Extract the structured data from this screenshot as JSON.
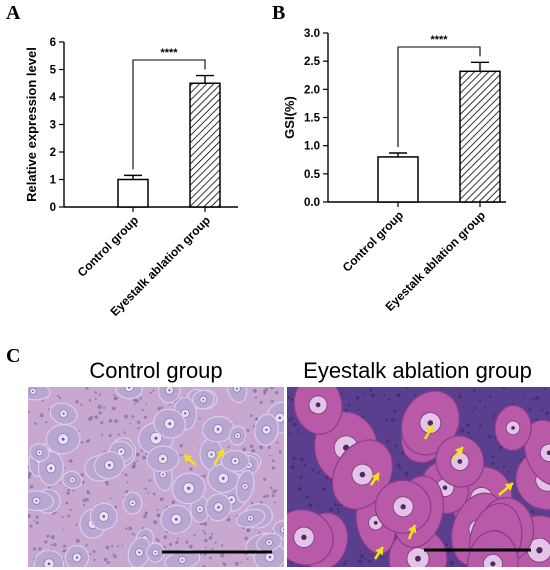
{
  "panels": {
    "a_letter": "A",
    "b_letter": "B",
    "c_letter": "C"
  },
  "chart_data": [
    {
      "type": "bar",
      "panel": "A",
      "categories": [
        "Control group",
        "Eyestalk ablation group"
      ],
      "values": [
        1.0,
        4.5
      ],
      "errors": [
        0.15,
        0.28
      ],
      "ylabel": "Relative expression level",
      "xlabel": "",
      "ylim": [
        0,
        6
      ],
      "yticks": [
        "0",
        "1",
        "2",
        "3",
        "4",
        "5",
        "6"
      ],
      "significance": "****",
      "bar_fills": [
        "white",
        "hatched"
      ],
      "grid": false
    },
    {
      "type": "bar",
      "panel": "B",
      "categories": [
        "Control group",
        "Eyestalk ablation group"
      ],
      "values": [
        0.8,
        2.32
      ],
      "errors": [
        0.07,
        0.16
      ],
      "ylabel": "GSI(%)",
      "xlabel": "",
      "ylim": [
        0,
        3.0
      ],
      "yticks": [
        "0.0",
        "0.5",
        "1.0",
        "1.5",
        "2.0",
        "2.5",
        "3.0"
      ],
      "significance": "****",
      "bar_fills": [
        "white",
        "hatched"
      ],
      "grid": false
    }
  ],
  "histology": {
    "left_title": "Control group",
    "right_title": "Eyestalk ablation group",
    "colors": {
      "control_bg": "#c8a8cf",
      "control_cell": "#b9a6d2",
      "ablation_bg": "#5a3f8e",
      "ablation_cell": "#b85aa8",
      "arrow": "#f2e21a",
      "scale_bar": "#000000"
    }
  }
}
